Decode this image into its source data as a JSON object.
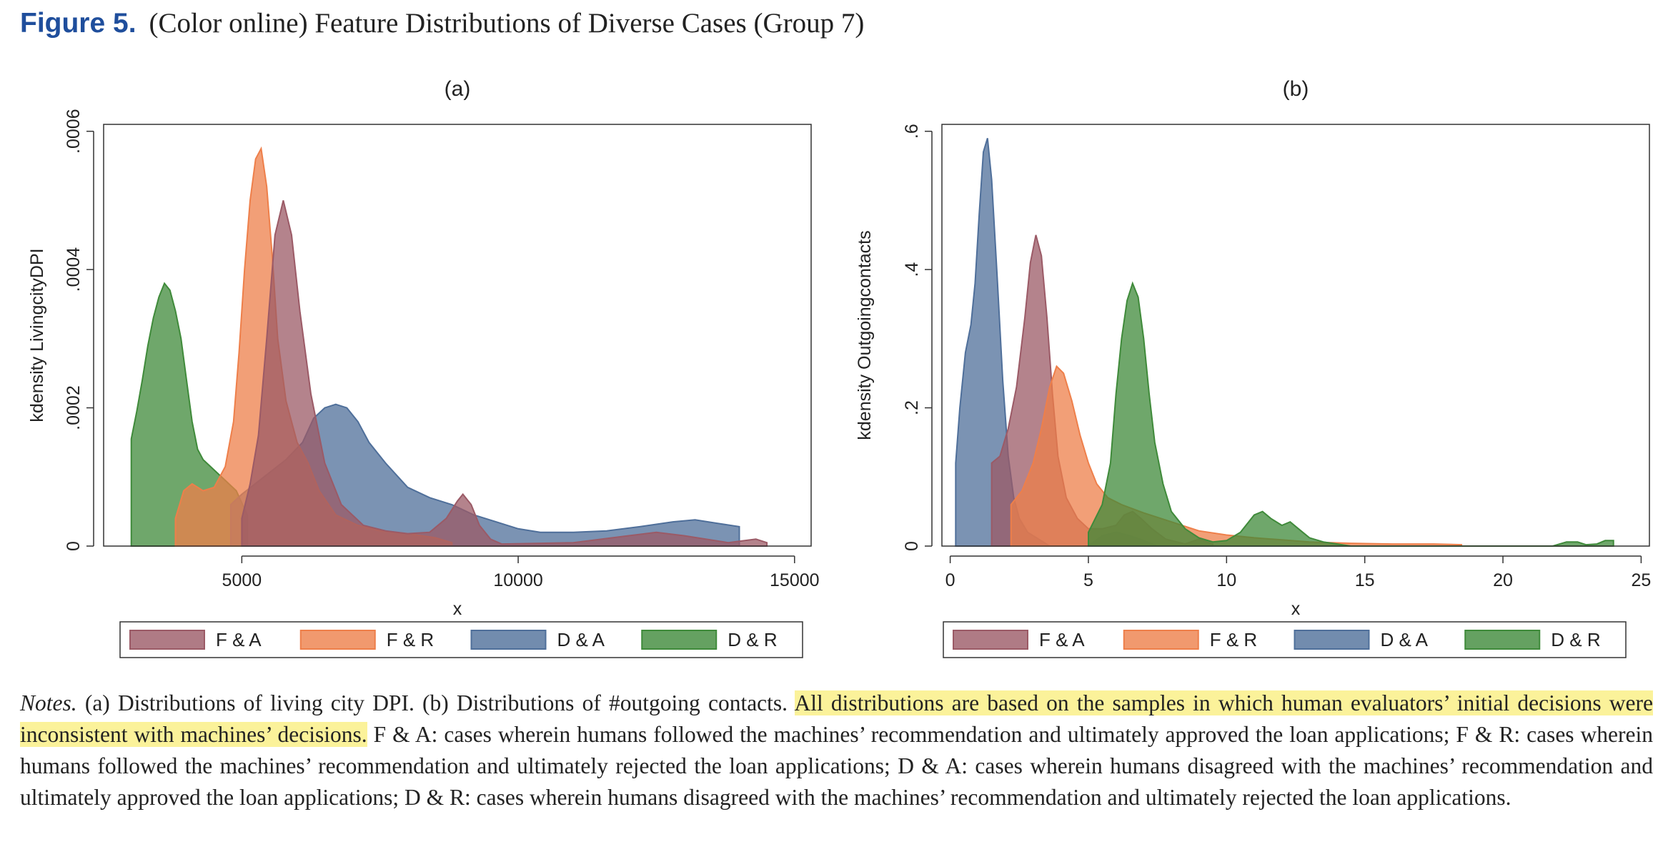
{
  "figure": {
    "label": "Figure 5.",
    "title": "(Color online) Feature Distributions of Diverse Cases (Group 7)"
  },
  "colors": {
    "FA": "#9b5a66",
    "FR": "#ee7f4a",
    "DA": "#4f6f9a",
    "DR": "#3f8a3a"
  },
  "chart_data": [
    {
      "type": "area",
      "panel_label": "(a)",
      "xlabel": "x",
      "ylabel": "kdensity LivingcityDPI",
      "xlim": [
        2500,
        15300
      ],
      "ylim": [
        0,
        0.00061
      ],
      "xticks": [
        5000,
        10000,
        15000
      ],
      "yticks": [
        0,
        0.0002,
        0.0004,
        0.0006
      ],
      "ytick_labels": [
        "0",
        ".0002",
        ".0004",
        ".0006"
      ],
      "grid": false,
      "legend_position": "bottom",
      "legend": [
        "F & A",
        "F & R",
        "D & A",
        "D & R"
      ],
      "series": [
        {
          "name": "D & R",
          "key": "DR",
          "points": [
            [
              3000,
              0
            ],
            [
              3000,
              0.000155
            ],
            [
              3100,
              0.000195
            ],
            [
              3200,
              0.00024
            ],
            [
              3300,
              0.00029
            ],
            [
              3400,
              0.00033
            ],
            [
              3500,
              0.00036
            ],
            [
              3600,
              0.00038
            ],
            [
              3700,
              0.00037
            ],
            [
              3800,
              0.00034
            ],
            [
              3900,
              0.0003
            ],
            [
              4000,
              0.00024
            ],
            [
              4100,
              0.00018
            ],
            [
              4200,
              0.00014
            ],
            [
              4300,
              0.000125
            ],
            [
              4500,
              0.00011
            ],
            [
              4700,
              9.5e-05
            ],
            [
              4900,
              8e-05
            ],
            [
              5100,
              4.5e-05
            ],
            [
              5100,
              0
            ]
          ]
        },
        {
          "name": "D & A",
          "key": "DA",
          "points": [
            [
              4800,
              0
            ],
            [
              4800,
              6e-05
            ],
            [
              5000,
              7.5e-05
            ],
            [
              5400,
              0.0001
            ],
            [
              5800,
              0.000125
            ],
            [
              6100,
              0.00015
            ],
            [
              6300,
              0.000185
            ],
            [
              6500,
              0.0002
            ],
            [
              6700,
              0.000205
            ],
            [
              6900,
              0.0002
            ],
            [
              7100,
              0.00018
            ],
            [
              7300,
              0.00015
            ],
            [
              7600,
              0.00012
            ],
            [
              8000,
              8.5e-05
            ],
            [
              8400,
              7e-05
            ],
            [
              8800,
              6e-05
            ],
            [
              9200,
              4.5e-05
            ],
            [
              9600,
              3.5e-05
            ],
            [
              10000,
              2.5e-05
            ],
            [
              10400,
              2e-05
            ],
            [
              11000,
              2e-05
            ],
            [
              11600,
              2.2e-05
            ],
            [
              12200,
              2.8e-05
            ],
            [
              12800,
              3.5e-05
            ],
            [
              13200,
              3.8e-05
            ],
            [
              13600,
              3.3e-05
            ],
            [
              14000,
              2.8e-05
            ],
            [
              14000,
              0
            ]
          ]
        },
        {
          "name": "F & R",
          "key": "FR",
          "points": [
            [
              3800,
              0
            ],
            [
              3800,
              4e-05
            ],
            [
              3950,
              8e-05
            ],
            [
              4100,
              9e-05
            ],
            [
              4300,
              8e-05
            ],
            [
              4500,
              8.5e-05
            ],
            [
              4700,
              0.000115
            ],
            [
              4850,
              0.00018
            ],
            [
              4950,
              0.00028
            ],
            [
              5050,
              0.0004
            ],
            [
              5150,
              0.0005
            ],
            [
              5250,
              0.00056
            ],
            [
              5350,
              0.000575
            ],
            [
              5450,
              0.00052
            ],
            [
              5550,
              0.00042
            ],
            [
              5650,
              0.0003
            ],
            [
              5800,
              0.00021
            ],
            [
              6000,
              0.00015
            ],
            [
              6200,
              0.00012
            ],
            [
              6400,
              8e-05
            ],
            [
              6700,
              4.5e-05
            ],
            [
              7100,
              3e-05
            ],
            [
              7500,
              2.2e-05
            ],
            [
              8000,
              1.8e-05
            ],
            [
              8500,
              1.2e-05
            ],
            [
              8800,
              5e-06
            ],
            [
              8800,
              0
            ]
          ]
        },
        {
          "name": "F & A",
          "key": "FA",
          "points": [
            [
              5000,
              0
            ],
            [
              5000,
              4e-05
            ],
            [
              5150,
              9e-05
            ],
            [
              5300,
              0.00016
            ],
            [
              5450,
              0.0003
            ],
            [
              5600,
              0.00045
            ],
            [
              5750,
              0.0005
            ],
            [
              5900,
              0.00045
            ],
            [
              6050,
              0.00034
            ],
            [
              6250,
              0.00022
            ],
            [
              6500,
              0.00012
            ],
            [
              6800,
              6e-05
            ],
            [
              7200,
              3e-05
            ],
            [
              7600,
              2.2e-05
            ],
            [
              8000,
              1.8e-05
            ],
            [
              8400,
              2e-05
            ],
            [
              8700,
              4e-05
            ],
            [
              8900,
              6.5e-05
            ],
            [
              9000,
              7.5e-05
            ],
            [
              9150,
              6e-05
            ],
            [
              9300,
              3e-05
            ],
            [
              9500,
              1e-05
            ],
            [
              9700,
              3e-06
            ],
            [
              11000,
              5e-06
            ],
            [
              12000,
              1.5e-05
            ],
            [
              12500,
              2e-05
            ],
            [
              13000,
              1.5e-05
            ],
            [
              13800,
              5e-06
            ],
            [
              14300,
              1e-05
            ],
            [
              14500,
              5e-06
            ],
            [
              14500,
              0
            ]
          ]
        }
      ]
    },
    {
      "type": "area",
      "panel_label": "(b)",
      "xlabel": "x",
      "ylabel": "kdensity Outgoingcontacts",
      "xlim": [
        -0.3,
        25.3
      ],
      "ylim": [
        0,
        0.61
      ],
      "xticks": [
        0,
        5,
        10,
        15,
        20,
        25
      ],
      "yticks": [
        0,
        0.2,
        0.4,
        0.6
      ],
      "ytick_labels": [
        "0",
        ".2",
        ".4",
        ".6"
      ],
      "grid": false,
      "legend_position": "bottom",
      "legend": [
        "F & A",
        "F & R",
        "D & A",
        "D & R"
      ],
      "series": [
        {
          "name": "D & A",
          "key": "DA",
          "points": [
            [
              0.2,
              0
            ],
            [
              0.2,
              0.12
            ],
            [
              0.35,
              0.2
            ],
            [
              0.55,
              0.28
            ],
            [
              0.75,
              0.32
            ],
            [
              0.9,
              0.38
            ],
            [
              1.05,
              0.48
            ],
            [
              1.2,
              0.57
            ],
            [
              1.35,
              0.59
            ],
            [
              1.5,
              0.53
            ],
            [
              1.7,
              0.39
            ],
            [
              1.9,
              0.24
            ],
            [
              2.1,
              0.13
            ],
            [
              2.3,
              0.07
            ],
            [
              2.5,
              0.04
            ],
            [
              2.8,
              0.02
            ],
            [
              3.2,
              0.01
            ],
            [
              3.6,
              0.0
            ],
            [
              5.0,
              0.0
            ],
            [
              5.5,
              0.015
            ],
            [
              6.0,
              0.02
            ],
            [
              6.5,
              0.015
            ],
            [
              7.0,
              0.008
            ],
            [
              7.5,
              0
            ],
            [
              7.5,
              0
            ]
          ]
        },
        {
          "name": "F & A",
          "key": "FA",
          "points": [
            [
              1.5,
              0
            ],
            [
              1.5,
              0.12
            ],
            [
              1.8,
              0.13
            ],
            [
              2.1,
              0.17
            ],
            [
              2.4,
              0.23
            ],
            [
              2.7,
              0.33
            ],
            [
              2.9,
              0.41
            ],
            [
              3.1,
              0.45
            ],
            [
              3.3,
              0.42
            ],
            [
              3.5,
              0.33
            ],
            [
              3.7,
              0.22
            ],
            [
              3.9,
              0.13
            ],
            [
              4.2,
              0.07
            ],
            [
              4.6,
              0.04
            ],
            [
              5.0,
              0.025
            ],
            [
              5.5,
              0.025
            ],
            [
              6.0,
              0.03
            ],
            [
              6.3,
              0.045
            ],
            [
              6.6,
              0.05
            ],
            [
              6.9,
              0.04
            ],
            [
              7.3,
              0.025
            ],
            [
              7.8,
              0.01
            ],
            [
              8.5,
              0.003
            ],
            [
              9.0,
              0.01
            ],
            [
              9.5,
              0.003
            ],
            [
              9.5,
              0
            ]
          ]
        },
        {
          "name": "F & R",
          "key": "FR",
          "points": [
            [
              2.2,
              0
            ],
            [
              2.2,
              0.06
            ],
            [
              2.6,
              0.08
            ],
            [
              3.0,
              0.12
            ],
            [
              3.3,
              0.17
            ],
            [
              3.6,
              0.23
            ],
            [
              3.85,
              0.26
            ],
            [
              4.1,
              0.25
            ],
            [
              4.4,
              0.21
            ],
            [
              4.7,
              0.16
            ],
            [
              5.0,
              0.12
            ],
            [
              5.3,
              0.09
            ],
            [
              5.7,
              0.07
            ],
            [
              6.2,
              0.06
            ],
            [
              7.0,
              0.048
            ],
            [
              8.0,
              0.035
            ],
            [
              9.0,
              0.022
            ],
            [
              10.0,
              0.016
            ],
            [
              11.0,
              0.012
            ],
            [
              12.0,
              0.009
            ],
            [
              13.0,
              0.006
            ],
            [
              14.5,
              0.004
            ],
            [
              16.0,
              0.003
            ],
            [
              17.5,
              0.003
            ],
            [
              18.5,
              0.002
            ],
            [
              18.5,
              0
            ]
          ]
        },
        {
          "name": "D & R",
          "key": "DR",
          "points": [
            [
              5.0,
              0
            ],
            [
              5.0,
              0.02
            ],
            [
              5.5,
              0.06
            ],
            [
              5.8,
              0.12
            ],
            [
              6.0,
              0.22
            ],
            [
              6.2,
              0.3
            ],
            [
              6.4,
              0.355
            ],
            [
              6.6,
              0.38
            ],
            [
              6.8,
              0.36
            ],
            [
              7.0,
              0.3
            ],
            [
              7.2,
              0.22
            ],
            [
              7.4,
              0.15
            ],
            [
              7.7,
              0.09
            ],
            [
              8.0,
              0.05
            ],
            [
              8.5,
              0.025
            ],
            [
              9.0,
              0.012
            ],
            [
              9.5,
              0.006
            ],
            [
              10.0,
              0.008
            ],
            [
              10.5,
              0.02
            ],
            [
              11.0,
              0.045
            ],
            [
              11.3,
              0.05
            ],
            [
              11.6,
              0.04
            ],
            [
              12.0,
              0.03
            ],
            [
              12.3,
              0.035
            ],
            [
              12.6,
              0.025
            ],
            [
              13.0,
              0.012
            ],
            [
              13.5,
              0.006
            ],
            [
              14.0,
              0.003
            ],
            [
              14.5,
              0
            ],
            [
              21.8,
              0
            ],
            [
              22.3,
              0.006
            ],
            [
              22.7,
              0.006
            ],
            [
              23.0,
              0.002
            ],
            [
              23.4,
              0.003
            ],
            [
              23.7,
              0.008
            ],
            [
              24.0,
              0.008
            ],
            [
              24.0,
              0
            ]
          ]
        }
      ]
    }
  ],
  "notes": {
    "label": "Notes.",
    "part1": "(a) Distributions of living city DPI. (b) Distributions of #outgoing contacts.",
    "highlight": "All distributions are based on the samples in which human evaluators’ initial decisions were inconsistent with machines’ decisions.",
    "part2": "F & A: cases wherein humans followed the machines’ recommendation and ultimately approved the loan applications; F & R: cases wherein humans followed the machines’ recommendation and ultimately rejected the loan applications; D & A: cases wherein humans disagreed with the machines’ recommendation and ultimately approved the loan applications; D & R: cases wherein humans disagreed with the machines’ recommendation and ultimately rejected the loan applications."
  }
}
